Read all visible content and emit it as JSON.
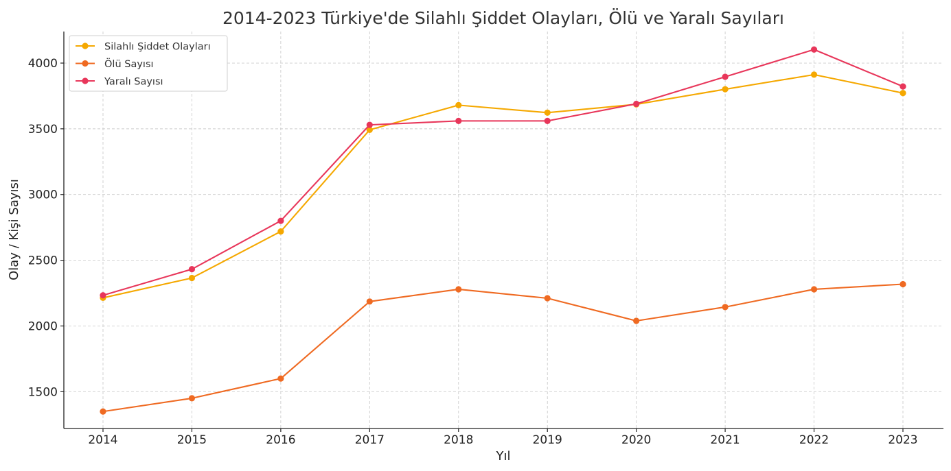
{
  "chart_data": {
    "type": "line",
    "title": "2014-2023 Türkiye'de Silahlı Şiddet Olayları, Ölü ve Yaralı Sayıları",
    "xlabel": "Yıl",
    "ylabel": "Olay / Kişi Sayısı",
    "x": [
      "2014",
      "2015",
      "2016",
      "2017",
      "2018",
      "2019",
      "2020",
      "2021",
      "2022",
      "2023"
    ],
    "ylim": [
      1220,
      4240
    ],
    "yticks": [
      1500,
      2000,
      2500,
      3000,
      3500,
      4000
    ],
    "grid": true,
    "legend_position": "top-left",
    "series": [
      {
        "name": "Silahlı Şiddet Olayları",
        "color": "#f5a800",
        "values": [
          2214,
          2365,
          2719,
          3492,
          3680,
          3623,
          3686,
          3801,
          3912,
          3772
        ]
      },
      {
        "name": "Ölü Sayısı",
        "color": "#ef6a22",
        "values": [
          1349,
          1450,
          1600,
          2186,
          2279,
          2211,
          2039,
          2144,
          2279,
          2318
        ]
      },
      {
        "name": "Yaralı Sayısı",
        "color": "#e8365a",
        "values": [
          2233,
          2432,
          2800,
          3530,
          3560,
          3560,
          3690,
          3896,
          4103,
          3822
        ]
      }
    ]
  }
}
